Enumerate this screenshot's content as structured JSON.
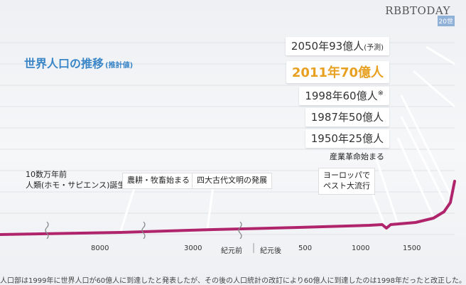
{
  "watermark": "RBBTODAY",
  "corner_tag": "20世",
  "chart_data": {
    "type": "line",
    "title": "世界人口の推移",
    "subtitle": "(推計値)",
    "x_ticks": [
      "8000",
      "3000",
      "紀元前",
      "紀元後",
      "500",
      "1000",
      "1500"
    ],
    "milestones": [
      {
        "label": "2050年93億人",
        "note": "(予測)"
      },
      {
        "label": "2011年70億人",
        "highlight": true
      },
      {
        "label": "1998年60億人",
        "note": "※"
      },
      {
        "label": "1987年50億人"
      },
      {
        "label": "1950年25億人"
      }
    ],
    "annotations": [
      {
        "lines": [
          "10数万年前",
          "人類(ホモ・サピエンス)誕生"
        ]
      },
      {
        "lines": [
          "農耕・牧畜始まる"
        ]
      },
      {
        "lines": [
          "四大古代文明の発展"
        ]
      },
      {
        "lines": [
          "産業革命始まる"
        ]
      },
      {
        "lines": [
          "ヨーロッパで",
          "ペスト大流行"
        ]
      }
    ],
    "series_color": "#b0246c"
  },
  "footnote": "人口部は1999年に世界人口が60億人に到達したと発表したが、その後の人口統計の改訂により60億人に到達したのは1998年だったと改正した。"
}
